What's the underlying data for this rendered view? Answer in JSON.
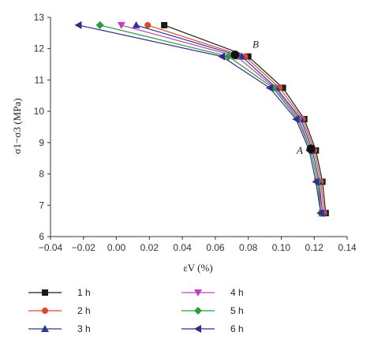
{
  "chart_data": {
    "type": "line",
    "xlabel": "εV (%)",
    "ylabel": "σ1−σ3 (MPa)",
    "xlim": [
      -0.04,
      0.14
    ],
    "ylim": [
      6,
      13
    ],
    "xticks": [
      "−0.04",
      "−0.02",
      "0.00",
      "0.02",
      "0.04",
      "0.06",
      "0.08",
      "0.10",
      "0.12",
      "0.14"
    ],
    "yticks": [
      "6",
      "7",
      "8",
      "9",
      "10",
      "11",
      "12",
      "13"
    ],
    "grid": false,
    "legend_position": "bottom",
    "series": [
      {
        "name": "1 h",
        "color": "#1a1a1a",
        "marker": "square",
        "x": [
          0.127,
          0.125,
          0.121,
          0.114,
          0.101,
          0.08,
          0.029
        ],
        "y": [
          6.75,
          7.75,
          8.75,
          9.75,
          10.75,
          11.75,
          12.75
        ]
      },
      {
        "name": "2 h",
        "color": "#d94a2b",
        "marker": "circle",
        "x": [
          0.126,
          0.124,
          0.12,
          0.113,
          0.099,
          0.078,
          0.019
        ],
        "y": [
          6.75,
          7.75,
          8.75,
          9.75,
          10.75,
          11.75,
          12.75
        ]
      },
      {
        "name": "3 h",
        "color": "#2b3a8f",
        "marker": "triangle-up",
        "x": [
          0.125,
          0.123,
          0.119,
          0.112,
          0.097,
          0.076,
          0.012
        ],
        "y": [
          6.75,
          7.75,
          8.75,
          9.75,
          10.75,
          11.75,
          12.75
        ]
      },
      {
        "name": "4 h",
        "color": "#c040c0",
        "marker": "triangle-down",
        "x": [
          0.125,
          0.122,
          0.118,
          0.111,
          0.096,
          0.073,
          0.003
        ],
        "y": [
          6.75,
          7.75,
          8.75,
          9.75,
          10.75,
          11.75,
          12.75
        ]
      },
      {
        "name": "5 h",
        "color": "#2e9a3a",
        "marker": "diamond",
        "x": [
          0.124,
          0.122,
          0.118,
          0.11,
          0.095,
          0.068,
          -0.01
        ],
        "y": [
          6.75,
          7.75,
          8.75,
          9.75,
          10.75,
          11.75,
          12.75
        ]
      },
      {
        "name": "6 h",
        "color": "#2f2f8a",
        "marker": "triangle-left",
        "x": [
          0.124,
          0.121,
          0.117,
          0.109,
          0.093,
          0.064,
          -0.023
        ],
        "y": [
          6.75,
          7.75,
          8.75,
          9.75,
          10.75,
          11.75,
          12.75
        ]
      }
    ],
    "annotations": [
      {
        "text": "A",
        "x": 0.118,
        "y": 8.8
      },
      {
        "text": "B",
        "x": 0.072,
        "y": 11.8
      }
    ]
  }
}
